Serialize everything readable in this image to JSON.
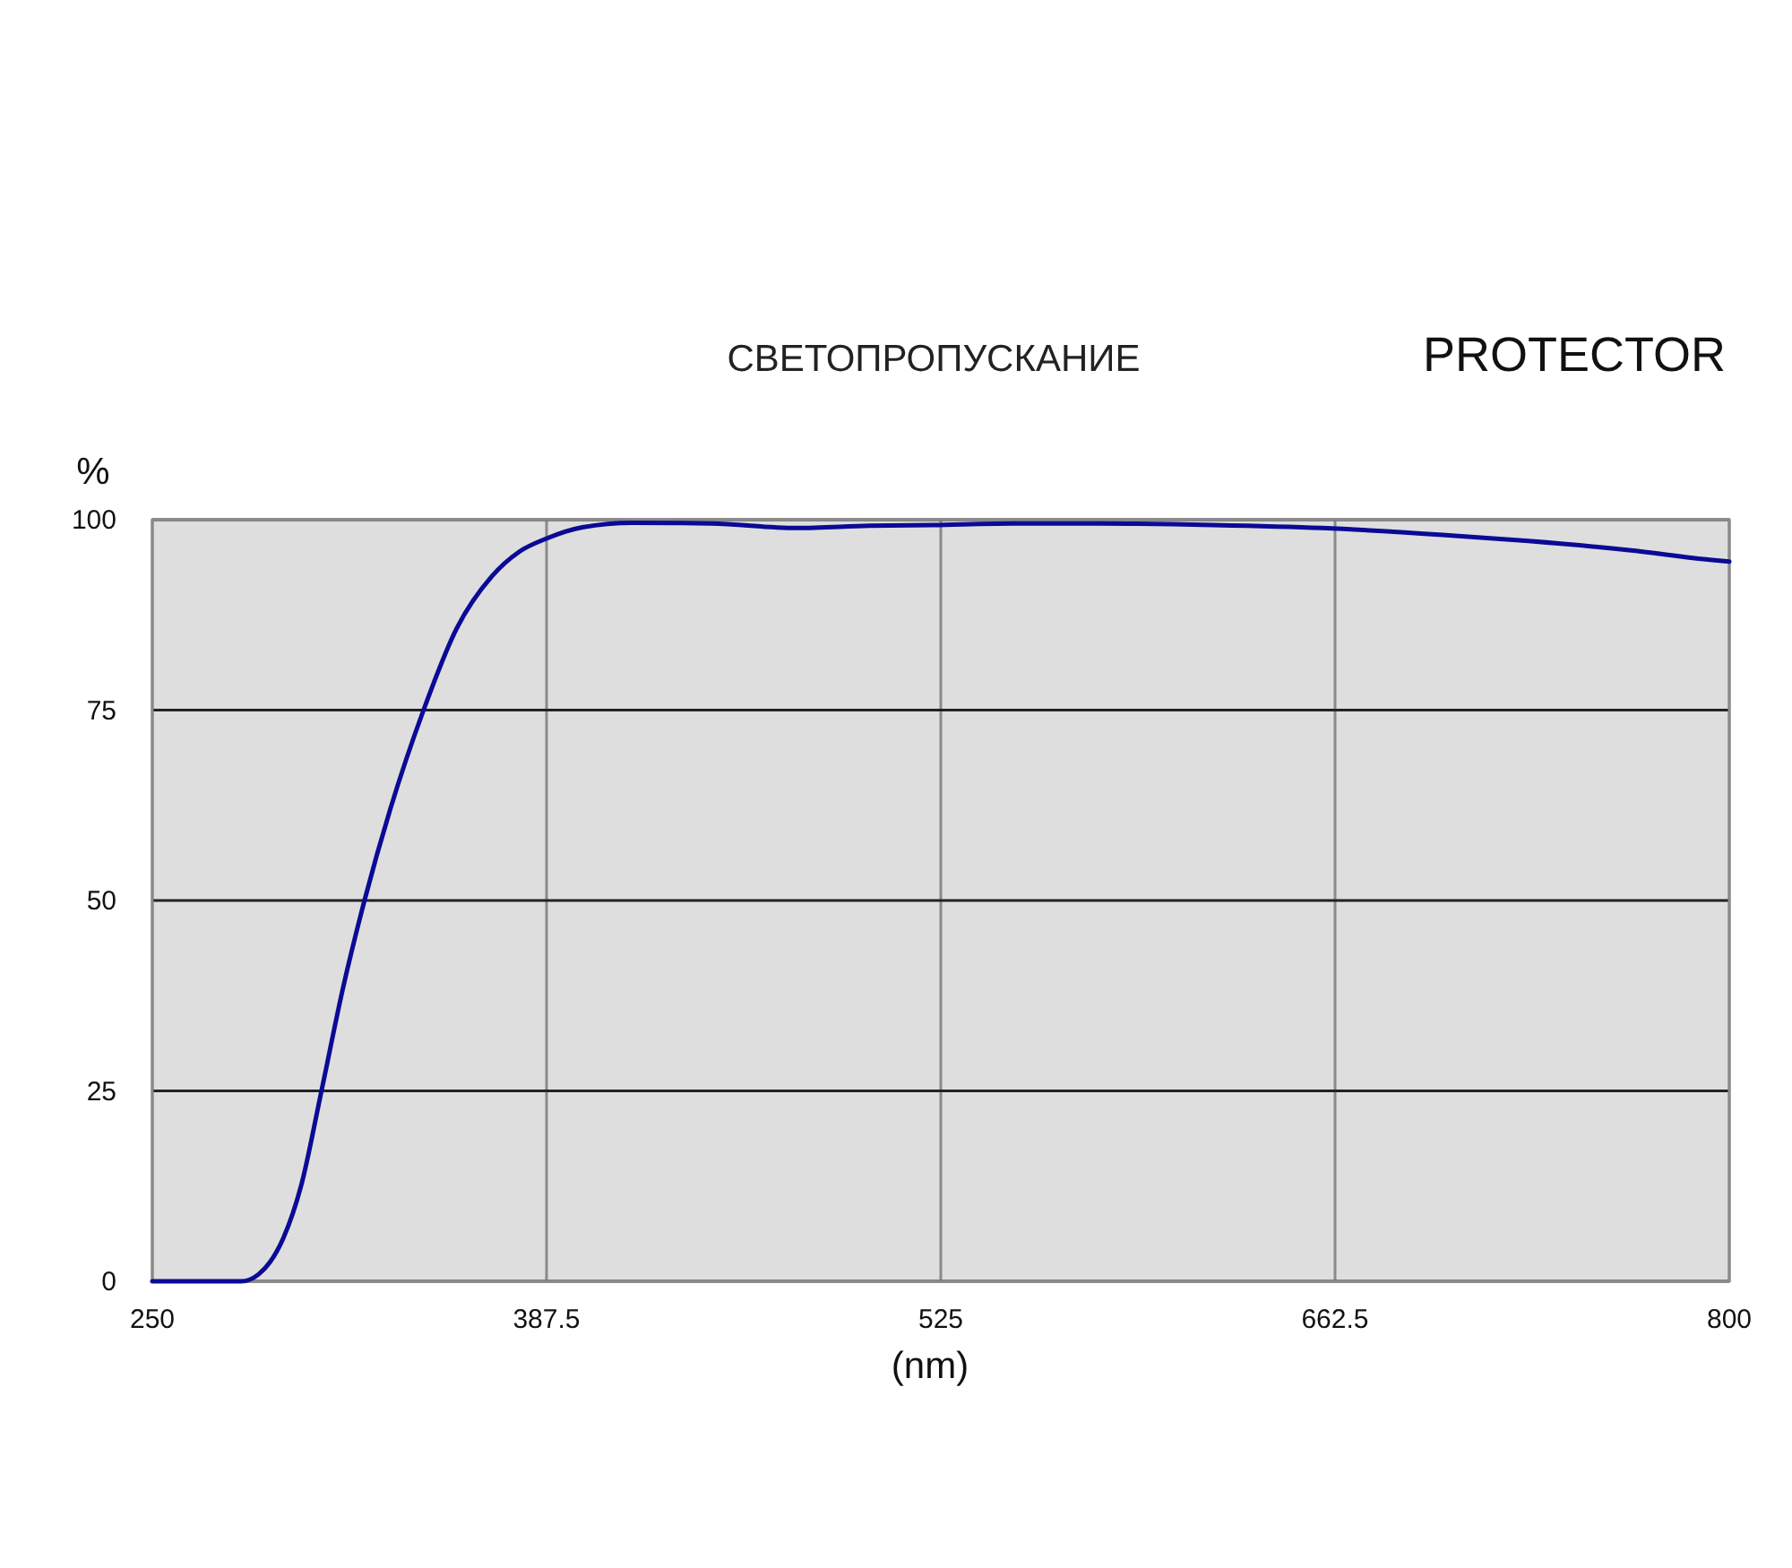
{
  "chart_data": {
    "type": "line",
    "title": "СВЕТОПРОПУСКАНИЕ",
    "subtitle": "PROTECTOR",
    "xlabel": "(nm)",
    "ylabel": "%",
    "x": [
      250,
      270,
      281,
      287,
      291,
      295.6,
      302,
      309,
      316.5,
      324,
      333,
      344.6,
      356,
      368.5,
      378,
      387.3,
      400,
      417.5,
      445,
      474.7,
      500,
      522,
      550,
      580.6,
      620,
      658,
      700,
      730,
      765,
      794,
      800
    ],
    "series": [
      {
        "color": "#0a0a96",
        "values": [
          0,
          0,
          0,
          0.9,
          2.5,
          5.6,
          12.7,
          25,
          38.5,
          50,
          62,
          75,
          85.6,
          92.6,
          95.8,
          97.5,
          99,
          99.6,
          99.5,
          98.9,
          99.2,
          99.3,
          99.5,
          99.5,
          99.3,
          98.9,
          98,
          97.2,
          96,
          94.7,
          94.5
        ]
      }
    ],
    "xlim": [
      250,
      800
    ],
    "xticks": [
      250,
      387.5,
      525,
      662.5,
      800
    ],
    "ylim": [
      0,
      100
    ],
    "yticks": [
      0,
      25,
      50,
      75,
      100
    ],
    "grid": true,
    "line_style": "solid",
    "marker": "none"
  }
}
